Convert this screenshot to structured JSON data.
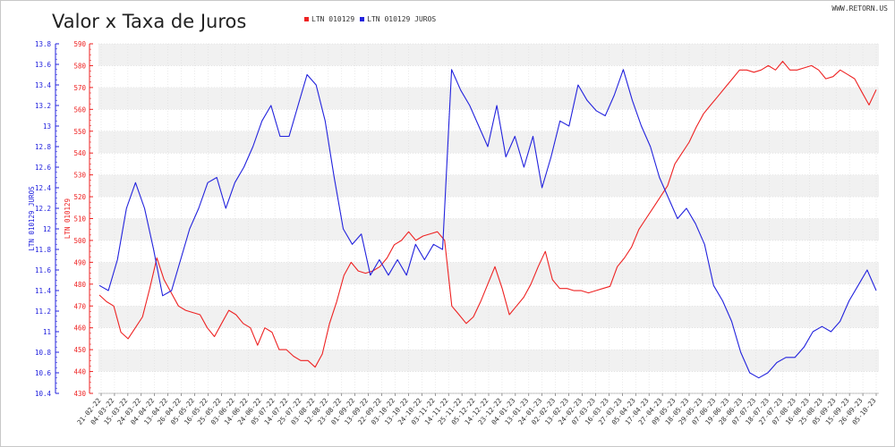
{
  "header": {
    "title": "Valor x Taxa de Juros",
    "site": "WWW.RETORN.US"
  },
  "legend": [
    {
      "label": "LTN 010129",
      "color": "#ee2222"
    },
    {
      "label": "LTN 010129 JUROS",
      "color": "#2222dd"
    }
  ],
  "chart_data": {
    "type": "line",
    "title": "Valor x Taxa de Juros",
    "grid": true,
    "y_left_label": "LTN 010129 JUROS",
    "y_right_label": "LTN 010129",
    "y_left_range": [
      10.4,
      13.8
    ],
    "y_right_range": [
      430,
      590
    ],
    "y_left_ticks": [
      "10.4",
      "10.6",
      "10.8",
      "11",
      "11.2",
      "11.4",
      "11.6",
      "11.8",
      "12",
      "12.2",
      "12.4",
      "12.6",
      "12.8",
      "13",
      "13.2",
      "13.4",
      "13.6",
      "13.8"
    ],
    "y_right_ticks": [
      "430",
      "440",
      "450",
      "460",
      "470",
      "480",
      "490",
      "500",
      "510",
      "520",
      "530",
      "540",
      "550",
      "560",
      "570",
      "580",
      "590"
    ],
    "x_labels": [
      "21-02-22",
      "04-03-22",
      "15-03-22",
      "24-03-22",
      "04-04-22",
      "13-04-22",
      "26-04-22",
      "05-05-22",
      "16-05-22",
      "25-05-22",
      "03-06-22",
      "14-06-22",
      "24-06-22",
      "05-07-22",
      "14-07-22",
      "25-07-22",
      "03-08-22",
      "12-08-22",
      "23-08-22",
      "01-09-22",
      "13-09-22",
      "22-09-22",
      "03-10-22",
      "13-10-22",
      "24-10-22",
      "03-11-22",
      "14-11-22",
      "25-11-22",
      "05-12-22",
      "14-12-22",
      "23-12-22",
      "04-01-23",
      "13-01-23",
      "24-01-23",
      "02-02-23",
      "13-02-23",
      "24-02-23",
      "07-03-23",
      "16-03-23",
      "27-03-23",
      "05-04-23",
      "17-04-23",
      "27-04-23",
      "09-05-23",
      "18-05-23",
      "29-05-23",
      "07-06-23",
      "19-06-23",
      "28-06-23",
      "07-07-23",
      "18-07-23",
      "27-07-23",
      "07-08-23",
      "16-08-23",
      "25-08-23",
      "05-09-23",
      "15-09-23",
      "26-09-23",
      "05-10-23"
    ],
    "series": [
      {
        "name": "LTN 010129",
        "axis": "right",
        "color": "#ee2222",
        "values": [
          475,
          472,
          470,
          458,
          455,
          460,
          465,
          478,
          492,
          482,
          476,
          470,
          468,
          467,
          466,
          460,
          456,
          462,
          468,
          466,
          462,
          460,
          452,
          460,
          458,
          450,
          450,
          447,
          445,
          445,
          442,
          448,
          462,
          472,
          484,
          490,
          486,
          485,
          486,
          488,
          492,
          498,
          500,
          504,
          500,
          502,
          503,
          504,
          500,
          470,
          466,
          462,
          465,
          472,
          480,
          488,
          478,
          466,
          470,
          474,
          480,
          488,
          495,
          482,
          478,
          478,
          477,
          477,
          476,
          477,
          478,
          479,
          488,
          492,
          497,
          505,
          510,
          515,
          520,
          525,
          535,
          540,
          545,
          552,
          558,
          562,
          566,
          570,
          574,
          578,
          578,
          577,
          578,
          580,
          578,
          582,
          578,
          578,
          579,
          580,
          578,
          574,
          575,
          578,
          576,
          574,
          568,
          562,
          569
        ]
      },
      {
        "name": "LTN 010129 JUROS",
        "axis": "left",
        "color": "#2222dd",
        "values": [
          11.45,
          11.4,
          11.7,
          12.2,
          12.45,
          12.2,
          11.8,
          11.35,
          11.4,
          11.7,
          12.0,
          12.2,
          12.45,
          12.5,
          12.2,
          12.45,
          12.6,
          12.8,
          13.05,
          13.2,
          12.9,
          12.9,
          13.2,
          13.5,
          13.4,
          13.05,
          12.5,
          12.0,
          11.85,
          11.95,
          11.55,
          11.7,
          11.55,
          11.7,
          11.55,
          11.85,
          11.7,
          11.85,
          11.8,
          13.55,
          13.35,
          13.2,
          13.0,
          12.8,
          13.2,
          12.7,
          12.9,
          12.6,
          12.9,
          12.4,
          12.7,
          13.05,
          13.0,
          13.4,
          13.25,
          13.15,
          13.1,
          13.3,
          13.55,
          13.25,
          13.0,
          12.8,
          12.5,
          12.3,
          12.1,
          12.2,
          12.05,
          11.85,
          11.45,
          11.3,
          11.1,
          10.8,
          10.6,
          10.55,
          10.6,
          10.7,
          10.75,
          10.75,
          10.85,
          11.0,
          11.05,
          11.0,
          11.1,
          11.3,
          11.45,
          11.6,
          11.4
        ]
      }
    ]
  }
}
